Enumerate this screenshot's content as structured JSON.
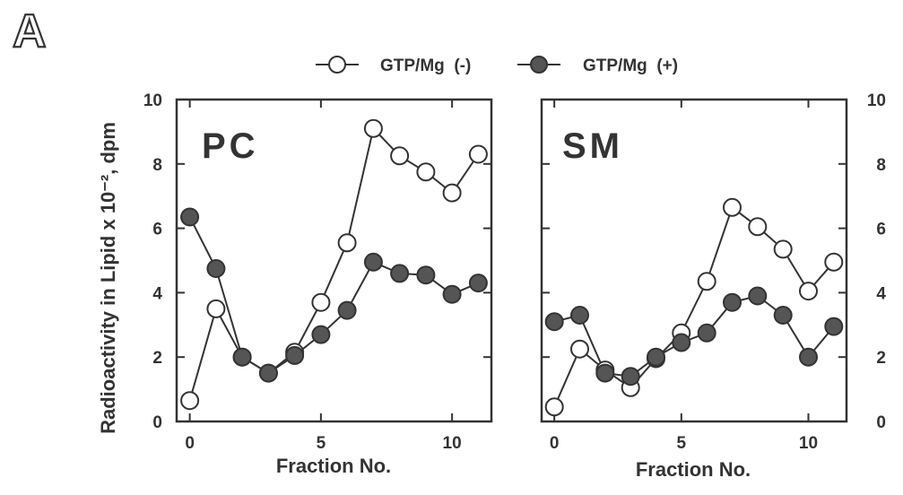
{
  "figure": {
    "panel_label": "A"
  },
  "legend": {
    "items": [
      {
        "label": "GTP/Mg  (-)",
        "marker": "open-circle"
      },
      {
        "label": "GTP/Mg  (+)",
        "marker": "filled-circle"
      }
    ],
    "placement": "top-center"
  },
  "colors": {
    "ink": "#333333",
    "filled_marker": "#555555",
    "open_marker": "#ffffff"
  },
  "chart_data": [
    {
      "type": "line",
      "title": "PC",
      "xlabel": "Fraction No.",
      "ylabel": "Radioactivity in Lipid x 10⁻², dpm",
      "xlim": [
        -0.5,
        11.5
      ],
      "ylim": [
        0,
        10
      ],
      "xticks": [
        0,
        5,
        10
      ],
      "yticks": [
        0,
        2,
        4,
        6,
        8,
        10
      ],
      "ytick_side": "left",
      "grid": false,
      "x": [
        0,
        1,
        2,
        3,
        4,
        5,
        6,
        7,
        8,
        9,
        10,
        11
      ],
      "series": [
        {
          "name": "GTP/Mg  (-)",
          "marker": "open",
          "values": [
            0.65,
            3.5,
            2.0,
            1.5,
            2.15,
            3.7,
            5.55,
            9.1,
            8.25,
            7.75,
            7.1,
            8.3
          ]
        },
        {
          "name": "GTP/Mg  (+)",
          "marker": "filled",
          "values": [
            6.35,
            4.75,
            2.0,
            1.5,
            2.05,
            2.7,
            3.45,
            4.95,
            4.6,
            4.55,
            3.95,
            4.3
          ]
        }
      ]
    },
    {
      "type": "line",
      "title": "SM",
      "xlabel": "Fraction No.",
      "ylabel": "",
      "xlim": [
        -0.5,
        11.5
      ],
      "ylim": [
        0,
        10
      ],
      "xticks": [
        0,
        5,
        10
      ],
      "yticks": [
        0,
        2,
        4,
        6,
        8,
        10
      ],
      "ytick_side": "right",
      "grid": false,
      "x": [
        0,
        1,
        2,
        3,
        4,
        5,
        6,
        7,
        8,
        9,
        10,
        11
      ],
      "series": [
        {
          "name": "GTP/Mg  (-)",
          "marker": "open",
          "values": [
            0.45,
            2.25,
            1.6,
            1.05,
            1.95,
            2.75,
            4.35,
            6.65,
            6.05,
            5.35,
            4.05,
            4.95
          ]
        },
        {
          "name": "GTP/Mg  (+)",
          "marker": "filled",
          "values": [
            3.1,
            3.3,
            1.5,
            1.4,
            2.0,
            2.45,
            2.75,
            3.7,
            3.9,
            3.3,
            2.0,
            2.95
          ]
        }
      ]
    }
  ]
}
